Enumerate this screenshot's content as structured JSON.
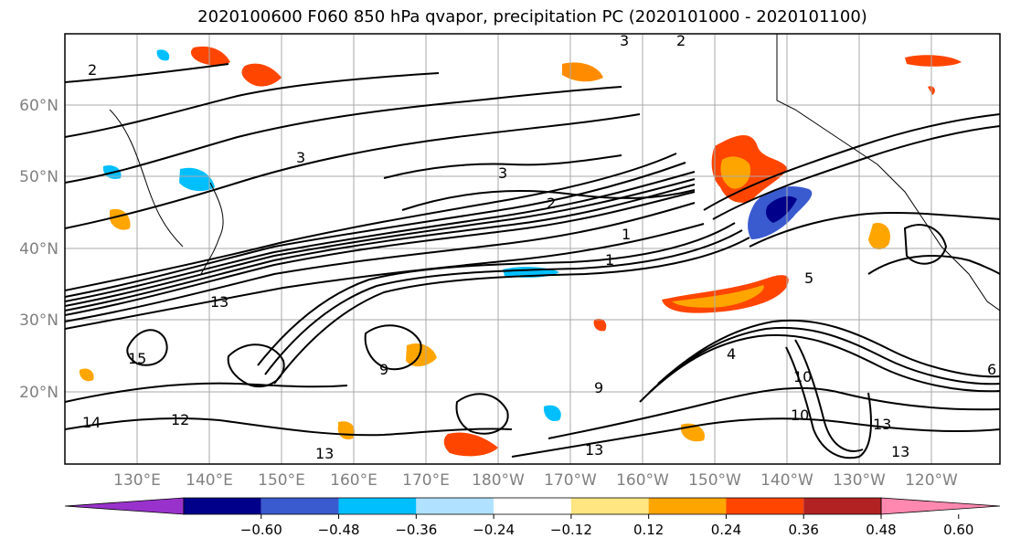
{
  "title": "2020100600 F060 850 hPa qvapor, precipitation PC (2020101000 - 2020101100)",
  "map": {
    "lat_labels": [
      "60°N",
      "50°N",
      "40°N",
      "30°N",
      "20°N"
    ],
    "lon_labels": [
      "130°E",
      "140°E",
      "150°E",
      "160°E",
      "170°E",
      "180°W",
      "170°W",
      "160°W",
      "150°W",
      "140°W",
      "130°W",
      "120°W"
    ],
    "contour_labels": [
      "2",
      "3",
      "1",
      "3",
      "2",
      "3",
      "2",
      "1",
      "13",
      "12",
      "13",
      "13",
      "9",
      "9",
      "10",
      "4",
      "10",
      "13",
      "13",
      "5",
      "6",
      "15",
      "14"
    ],
    "grid": true,
    "coastline_color": "#000000"
  },
  "colorbar": {
    "ticks": [
      "−0.60",
      "−0.48",
      "−0.36",
      "−0.24",
      "−0.12",
      "0.12",
      "0.24",
      "0.36",
      "0.48",
      "0.60"
    ],
    "colors": [
      "#9932cc",
      "#00008b",
      "#3a5bcf",
      "#00bfff",
      "#b0e2ff",
      "#ffffff",
      "#ffe680",
      "#ffa500",
      "#ff4500",
      "#b22222",
      "#ff88b0"
    ],
    "extend": "both"
  }
}
